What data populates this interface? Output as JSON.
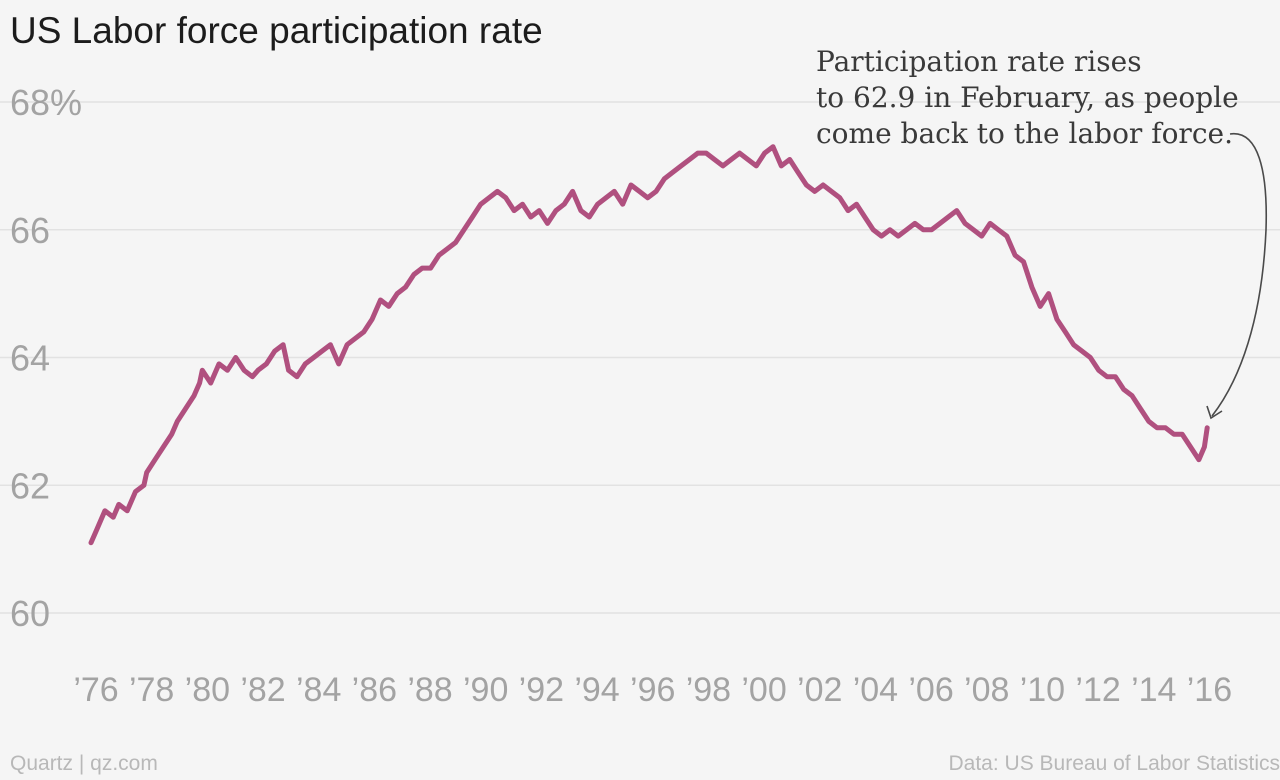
{
  "title": "US Labor force participation rate",
  "annotation": {
    "lines": [
      "Participation rate rises",
      "to 62.9 in February, as people",
      "come back to the labor force."
    ]
  },
  "footer": {
    "credit": "Quartz | qz.com",
    "source": "Data: US Bureau of Labor Statistics"
  },
  "colors": {
    "line": "#b0507f",
    "grid": "#e2e2e2",
    "tick_label": "#a3a3a3",
    "background": "#f5f5f5"
  },
  "chart_data": {
    "type": "line",
    "title": "US Labor force participation rate",
    "xlabel": "",
    "ylabel": "",
    "xlim": [
      1976,
      2016.2
    ],
    "ylim": [
      60,
      68
    ],
    "grid": true,
    "y_ticks": [
      {
        "value": 68,
        "label": "68%"
      },
      {
        "value": 66,
        "label": "66"
      },
      {
        "value": 64,
        "label": "64"
      },
      {
        "value": 62,
        "label": "62"
      },
      {
        "value": 60,
        "label": "60"
      }
    ],
    "x_ticks": [
      {
        "value": 1976,
        "label": "’76"
      },
      {
        "value": 1978,
        "label": "’78"
      },
      {
        "value": 1980,
        "label": "’80"
      },
      {
        "value": 1982,
        "label": "’82"
      },
      {
        "value": 1984,
        "label": "’84"
      },
      {
        "value": 1986,
        "label": "’86"
      },
      {
        "value": 1988,
        "label": "’88"
      },
      {
        "value": 1990,
        "label": "’90"
      },
      {
        "value": 1992,
        "label": "’92"
      },
      {
        "value": 1994,
        "label": "’94"
      },
      {
        "value": 1996,
        "label": "’96"
      },
      {
        "value": 1998,
        "label": "’98"
      },
      {
        "value": 2000,
        "label": "’00"
      },
      {
        "value": 2002,
        "label": "’02"
      },
      {
        "value": 2004,
        "label": "’04"
      },
      {
        "value": 2006,
        "label": "’06"
      },
      {
        "value": 2008,
        "label": "’08"
      },
      {
        "value": 2010,
        "label": "’10"
      },
      {
        "value": 2012,
        "label": "’12"
      },
      {
        "value": 2014,
        "label": "’14"
      },
      {
        "value": 2016,
        "label": "’16"
      }
    ],
    "series": [
      {
        "points": [
          [
            1976.0,
            61.1
          ],
          [
            1976.2,
            61.3
          ],
          [
            1976.5,
            61.6
          ],
          [
            1976.8,
            61.5
          ],
          [
            1977.0,
            61.7
          ],
          [
            1977.3,
            61.6
          ],
          [
            1977.6,
            61.9
          ],
          [
            1977.9,
            62.0
          ],
          [
            1978.0,
            62.2
          ],
          [
            1978.3,
            62.4
          ],
          [
            1978.6,
            62.6
          ],
          [
            1978.9,
            62.8
          ],
          [
            1979.1,
            63.0
          ],
          [
            1979.4,
            63.2
          ],
          [
            1979.7,
            63.4
          ],
          [
            1979.9,
            63.6
          ],
          [
            1980.0,
            63.8
          ],
          [
            1980.3,
            63.6
          ],
          [
            1980.6,
            63.9
          ],
          [
            1980.9,
            63.8
          ],
          [
            1981.2,
            64.0
          ],
          [
            1981.5,
            63.8
          ],
          [
            1981.8,
            63.7
          ],
          [
            1982.0,
            63.8
          ],
          [
            1982.3,
            63.9
          ],
          [
            1982.6,
            64.1
          ],
          [
            1982.9,
            64.2
          ],
          [
            1983.1,
            63.8
          ],
          [
            1983.4,
            63.7
          ],
          [
            1983.7,
            63.9
          ],
          [
            1984.0,
            64.0
          ],
          [
            1984.3,
            64.1
          ],
          [
            1984.6,
            64.2
          ],
          [
            1984.9,
            63.9
          ],
          [
            1985.2,
            64.2
          ],
          [
            1985.5,
            64.3
          ],
          [
            1985.8,
            64.4
          ],
          [
            1986.1,
            64.6
          ],
          [
            1986.4,
            64.9
          ],
          [
            1986.7,
            64.8
          ],
          [
            1987.0,
            65.0
          ],
          [
            1987.3,
            65.1
          ],
          [
            1987.6,
            65.3
          ],
          [
            1987.9,
            65.4
          ],
          [
            1988.2,
            65.4
          ],
          [
            1988.5,
            65.6
          ],
          [
            1988.8,
            65.7
          ],
          [
            1989.1,
            65.8
          ],
          [
            1989.4,
            66.0
          ],
          [
            1989.7,
            66.2
          ],
          [
            1990.0,
            66.4
          ],
          [
            1990.3,
            66.5
          ],
          [
            1990.6,
            66.6
          ],
          [
            1990.9,
            66.5
          ],
          [
            1991.2,
            66.3
          ],
          [
            1991.5,
            66.4
          ],
          [
            1991.8,
            66.2
          ],
          [
            1992.1,
            66.3
          ],
          [
            1992.4,
            66.1
          ],
          [
            1992.7,
            66.3
          ],
          [
            1993.0,
            66.4
          ],
          [
            1993.3,
            66.6
          ],
          [
            1993.6,
            66.3
          ],
          [
            1993.9,
            66.2
          ],
          [
            1994.2,
            66.4
          ],
          [
            1994.5,
            66.5
          ],
          [
            1994.8,
            66.6
          ],
          [
            1995.1,
            66.4
          ],
          [
            1995.4,
            66.7
          ],
          [
            1995.7,
            66.6
          ],
          [
            1996.0,
            66.5
          ],
          [
            1996.3,
            66.6
          ],
          [
            1996.6,
            66.8
          ],
          [
            1996.9,
            66.9
          ],
          [
            1997.2,
            67.0
          ],
          [
            1997.5,
            67.1
          ],
          [
            1997.8,
            67.2
          ],
          [
            1998.1,
            67.2
          ],
          [
            1998.4,
            67.1
          ],
          [
            1998.7,
            67.0
          ],
          [
            1999.0,
            67.1
          ],
          [
            1999.3,
            67.2
          ],
          [
            1999.6,
            67.1
          ],
          [
            1999.9,
            67.0
          ],
          [
            2000.2,
            67.2
          ],
          [
            2000.5,
            67.3
          ],
          [
            2000.8,
            67.0
          ],
          [
            2001.1,
            67.1
          ],
          [
            2001.4,
            66.9
          ],
          [
            2001.7,
            66.7
          ],
          [
            2002.0,
            66.6
          ],
          [
            2002.3,
            66.7
          ],
          [
            2002.6,
            66.6
          ],
          [
            2002.9,
            66.5
          ],
          [
            2003.2,
            66.3
          ],
          [
            2003.5,
            66.4
          ],
          [
            2003.8,
            66.2
          ],
          [
            2004.1,
            66.0
          ],
          [
            2004.4,
            65.9
          ],
          [
            2004.7,
            66.0
          ],
          [
            2005.0,
            65.9
          ],
          [
            2005.3,
            66.0
          ],
          [
            2005.6,
            66.1
          ],
          [
            2005.9,
            66.0
          ],
          [
            2006.2,
            66.0
          ],
          [
            2006.5,
            66.1
          ],
          [
            2006.8,
            66.2
          ],
          [
            2007.1,
            66.3
          ],
          [
            2007.4,
            66.1
          ],
          [
            2007.7,
            66.0
          ],
          [
            2008.0,
            65.9
          ],
          [
            2008.3,
            66.1
          ],
          [
            2008.6,
            66.0
          ],
          [
            2008.9,
            65.9
          ],
          [
            2009.2,
            65.6
          ],
          [
            2009.5,
            65.5
          ],
          [
            2009.8,
            65.1
          ],
          [
            2010.1,
            64.8
          ],
          [
            2010.4,
            65.0
          ],
          [
            2010.7,
            64.6
          ],
          [
            2011.0,
            64.4
          ],
          [
            2011.3,
            64.2
          ],
          [
            2011.6,
            64.1
          ],
          [
            2011.9,
            64.0
          ],
          [
            2012.2,
            63.8
          ],
          [
            2012.5,
            63.7
          ],
          [
            2012.8,
            63.7
          ],
          [
            2013.1,
            63.5
          ],
          [
            2013.4,
            63.4
          ],
          [
            2013.7,
            63.2
          ],
          [
            2014.0,
            63.0
          ],
          [
            2014.3,
            62.9
          ],
          [
            2014.6,
            62.9
          ],
          [
            2014.9,
            62.8
          ],
          [
            2015.2,
            62.8
          ],
          [
            2015.5,
            62.6
          ],
          [
            2015.8,
            62.4
          ],
          [
            2016.0,
            62.6
          ],
          [
            2016.1,
            62.9
          ]
        ]
      }
    ]
  }
}
